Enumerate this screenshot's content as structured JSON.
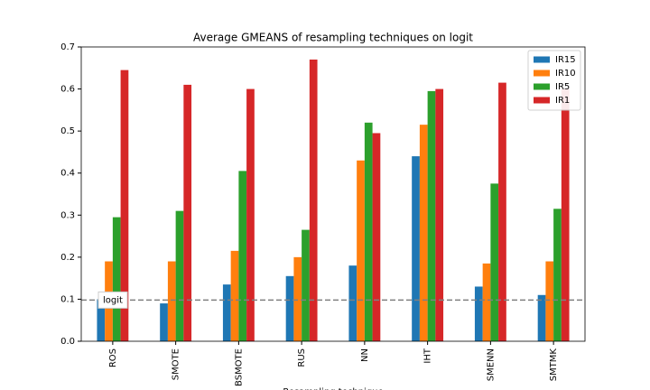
{
  "chart_data": {
    "type": "bar",
    "title": "Average GMEANS of resampling techniques on logit",
    "xlabel": "Resampling technique",
    "categories": [
      "ROS",
      "SMOTE",
      "BSMOTE",
      "RUS",
      "NN",
      "IHT",
      "SMENN",
      "SMTMK"
    ],
    "series": [
      {
        "name": "IR15",
        "color": "#1f77b4",
        "values": [
          0.1,
          0.09,
          0.135,
          0.155,
          0.18,
          0.44,
          0.13,
          0.11
        ]
      },
      {
        "name": "IR10",
        "color": "#ff7f0e",
        "values": [
          0.19,
          0.19,
          0.215,
          0.2,
          0.43,
          0.515,
          0.185,
          0.19
        ]
      },
      {
        "name": "IR5",
        "color": "#2ca02c",
        "values": [
          0.295,
          0.31,
          0.405,
          0.265,
          0.52,
          0.595,
          0.375,
          0.315
        ]
      },
      {
        "name": "IR1",
        "color": "#d62728",
        "values": [
          0.645,
          0.61,
          0.6,
          0.67,
          0.495,
          0.6,
          0.615,
          0.6
        ]
      }
    ],
    "ylim": [
      0,
      0.7
    ],
    "yticks": [
      {
        "value": 0,
        "label": "0.0"
      },
      0.1,
      0.2,
      0.3,
      0.4,
      0.5,
      0.6,
      0.7
    ],
    "hline": {
      "value": 0.098,
      "label": "logit",
      "color": "#808080"
    },
    "legend": "upper right"
  }
}
